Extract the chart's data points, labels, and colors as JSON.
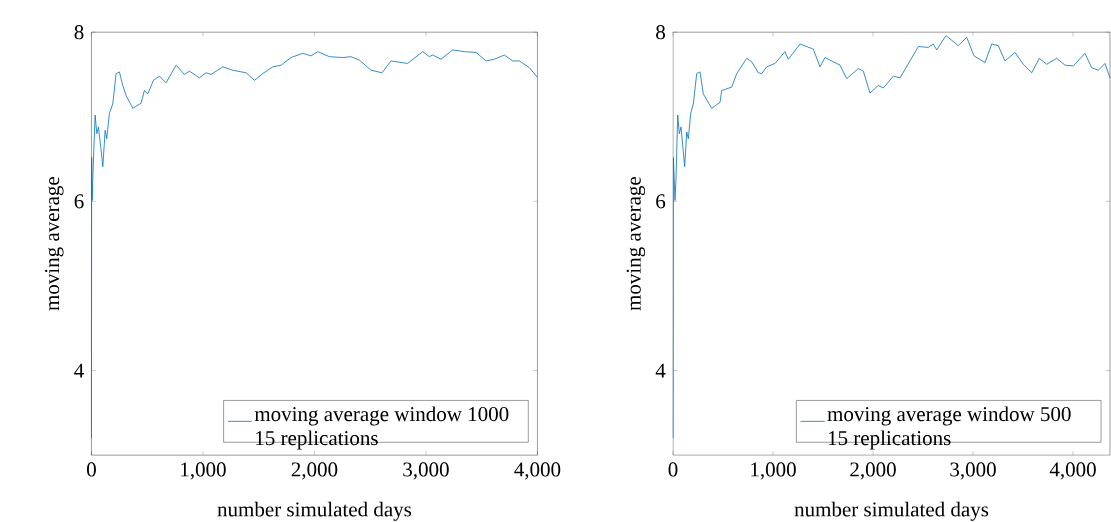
{
  "chart_data": [
    {
      "type": "line",
      "xlabel": "number simulated days",
      "ylabel": "moving average",
      "legend": "bottom right",
      "xlim": [
        0,
        4000
      ],
      "ylim": [
        3,
        8
      ],
      "xticks": [
        0,
        {
          "value": 1000,
          "label": "1,000"
        },
        {
          "value": 2000,
          "label": "2,000"
        },
        {
          "value": 3000,
          "label": "3,000"
        },
        {
          "value": 4000,
          "label": "4,000"
        }
      ],
      "yticks": [
        4,
        6,
        8
      ],
      "series": [
        {
          "name": "moving average window 1000 15 replications",
          "color": "#0072bd",
          "x": [
            0,
            2,
            6,
            12,
            33,
            48,
            63,
            87,
            102,
            123,
            137,
            161,
            191,
            221,
            251,
            281,
            311,
            371,
            445,
            475,
            505,
            556,
            610,
            669,
            759,
            834,
            879,
            968,
            1028,
            1073,
            1178,
            1267,
            1387,
            1462,
            1536,
            1626,
            1701,
            1790,
            1895,
            1970,
            2030,
            2134,
            2254,
            2328,
            2403,
            2508,
            2606,
            2687,
            2836,
            2971,
            3031,
            3060,
            3135,
            3240,
            3345,
            3450,
            3539,
            3614,
            3704,
            3778,
            3838,
            3928,
            3997
          ],
          "values": [
            3.2,
            6.52,
            6.01,
            6.27,
            7.02,
            6.8,
            6.88,
            6.6,
            6.41,
            6.84,
            6.74,
            7.04,
            7.15,
            7.51,
            7.53,
            7.37,
            7.25,
            7.1,
            7.16,
            7.31,
            7.27,
            7.43,
            7.48,
            7.4,
            7.61,
            7.5,
            7.54,
            7.46,
            7.52,
            7.5,
            7.59,
            7.55,
            7.52,
            7.43,
            7.51,
            7.59,
            7.61,
            7.7,
            7.75,
            7.72,
            7.77,
            7.71,
            7.7,
            7.71,
            7.67,
            7.55,
            7.52,
            7.66,
            7.63,
            7.77,
            7.71,
            7.73,
            7.68,
            7.79,
            7.77,
            7.76,
            7.66,
            7.68,
            7.73,
            7.66,
            7.66,
            7.58,
            7.47
          ]
        }
      ]
    },
    {
      "type": "line",
      "xlabel": "number simulated days",
      "ylabel": "moving average",
      "legend": "bottom right",
      "xlim": [
        0,
        4370
      ],
      "ylim": [
        3,
        8
      ],
      "xticks": [
        0,
        {
          "value": 1000,
          "label": "1,000"
        },
        {
          "value": 2000,
          "label": "2,000"
        },
        {
          "value": 3000,
          "label": "3,000"
        },
        {
          "value": 4000,
          "label": "4,000"
        }
      ],
      "yticks": [
        4,
        6,
        8
      ],
      "series": [
        {
          "name": "moving average window 500 15 replications",
          "color": "#0072bd",
          "x": [
            0,
            4,
            20,
            30,
            47,
            63,
            80,
            117,
            137,
            153,
            177,
            203,
            237,
            270,
            303,
            387,
            470,
            487,
            587,
            637,
            737,
            787,
            853,
            887,
            937,
            1020,
            1120,
            1153,
            1270,
            1403,
            1470,
            1520,
            1670,
            1737,
            1853,
            1903,
            1970,
            2053,
            2103,
            2203,
            2270,
            2370,
            2453,
            2553,
            2603,
            2637,
            2730,
            2853,
            2937,
            3010,
            3120,
            3187,
            3253,
            3320,
            3420,
            3503,
            3587,
            3663,
            3737,
            3837,
            3920,
            4003,
            4120,
            4187,
            4253,
            4320,
            4370
          ],
          "values": [
            3.2,
            6.52,
            6.01,
            6.27,
            7.02,
            6.8,
            6.88,
            6.41,
            6.82,
            6.74,
            7.04,
            7.15,
            7.51,
            7.53,
            7.27,
            7.1,
            7.17,
            7.31,
            7.35,
            7.51,
            7.69,
            7.65,
            7.52,
            7.51,
            7.59,
            7.63,
            7.77,
            7.68,
            7.86,
            7.8,
            7.59,
            7.7,
            7.61,
            7.45,
            7.57,
            7.54,
            7.28,
            7.37,
            7.34,
            7.48,
            7.46,
            7.66,
            7.83,
            7.82,
            7.86,
            7.79,
            7.96,
            7.84,
            7.94,
            7.72,
            7.64,
            7.86,
            7.84,
            7.66,
            7.76,
            7.62,
            7.52,
            7.69,
            7.62,
            7.69,
            7.61,
            7.6,
            7.75,
            7.58,
            7.55,
            7.63,
            7.46
          ]
        }
      ]
    }
  ]
}
